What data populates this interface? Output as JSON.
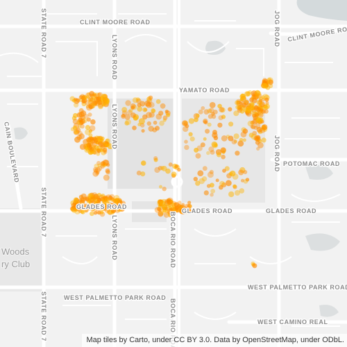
{
  "map": {
    "roads": {
      "clint_moore_road": "CLINT MOORE ROAD",
      "clint_moore_road_east": "CLINT MOORE ROAD",
      "yamato_road": "YAMATO ROAD",
      "glades_road_west": "GLADES ROAD",
      "glades_road_mid": "GLADES ROAD",
      "glades_road_east": "GLADES ROAD",
      "potomac_road": "POTOMAC ROAD",
      "west_palmetto_park_road_west": "WEST PALMETTO PARK ROAD",
      "west_palmetto_park_road_east": "WEST PALMETTO PARK ROAD",
      "west_camino_real": "WEST CAMINO REAL",
      "state_road_7_north": "STATE ROAD 7",
      "state_road_7_mid": "STATE ROAD 7",
      "state_road_7_south": "STATE ROAD 7",
      "lyons_road_north": "LYONS ROAD",
      "lyons_road_mid": "LYONS ROAD",
      "lyons_road_south": "LYONS ROAD",
      "boca_rio_road": "BOCA RIO ROAD",
      "boca_rio_road_south": "BOCA RIO ROAD",
      "jog_road_north": "JOG ROAD",
      "jog_road_mid": "JOG ROAD",
      "cain_boulevard": "CAIN BOULEVARD"
    },
    "places": {
      "woods_line1": "Woods",
      "woods_line2": "ry Club"
    },
    "colors": {
      "background": "#f2f2f2",
      "major_road": "#ffffff",
      "minor_road": "#ffffff",
      "water": "#d4dadc",
      "park": "#e6e6e6",
      "point_fill": "#ff8c00",
      "point_core": "#ffb400"
    }
  },
  "attribution": "Map tiles by Carto, under CC BY 3.0. Data by OpenStreetMap, under ODbL."
}
